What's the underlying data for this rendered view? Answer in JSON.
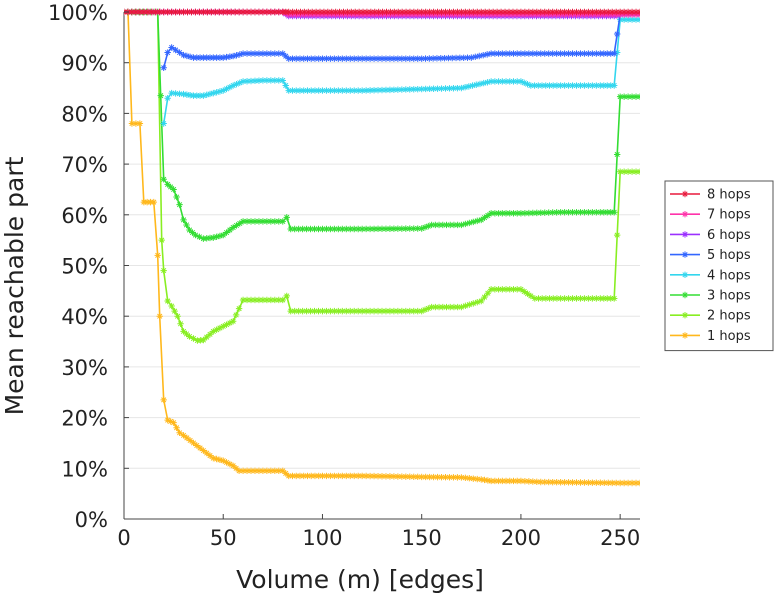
{
  "chart_data": {
    "type": "line",
    "title": "",
    "xlabel": "Volume (m) [edges]",
    "ylabel": "Mean reachable part",
    "xlim": [
      0,
      260
    ],
    "ylim": [
      0,
      100
    ],
    "x_ticks": [
      0,
      50,
      100,
      150,
      200,
      250
    ],
    "y_ticks": [
      0,
      10,
      20,
      30,
      40,
      50,
      60,
      70,
      80,
      90,
      100
    ],
    "y_tick_labels": [
      "0%",
      "10%",
      "20%",
      "30%",
      "40%",
      "50%",
      "60%",
      "70%",
      "80%",
      "90%",
      "100%"
    ],
    "grid": true,
    "legend_position": "right",
    "series": [
      {
        "name": "8 hops",
        "color": "#e8183c",
        "points": [
          [
            0,
            100
          ],
          [
            20,
            100
          ],
          [
            80,
            100
          ],
          [
            83,
            100
          ],
          [
            150,
            100
          ],
          [
            200,
            100
          ],
          [
            250,
            100
          ],
          [
            260,
            100
          ]
        ]
      },
      {
        "name": "7 hops",
        "color": "#ff33aa",
        "points": [
          [
            0,
            100
          ],
          [
            20,
            100
          ],
          [
            80,
            100
          ],
          [
            83,
            99.5
          ],
          [
            150,
            99.5
          ],
          [
            200,
            99.5
          ],
          [
            250,
            99.5
          ],
          [
            260,
            99.5
          ]
        ]
      },
      {
        "name": "6 hops",
        "color": "#9b30ff",
        "points": [
          [
            0,
            100
          ],
          [
            20,
            100
          ],
          [
            80,
            100
          ],
          [
            83,
            99.2
          ],
          [
            150,
            99.2
          ],
          [
            200,
            99.2
          ],
          [
            247,
            99.2
          ],
          [
            250,
            99.5
          ],
          [
            260,
            99.5
          ]
        ]
      },
      {
        "name": "5 hops",
        "color": "#3366ff",
        "points": [
          [
            20,
            89
          ],
          [
            22,
            92
          ],
          [
            24,
            93
          ],
          [
            26,
            92.5
          ],
          [
            28,
            92
          ],
          [
            30,
            91.5
          ],
          [
            35,
            91
          ],
          [
            40,
            91
          ],
          [
            45,
            91
          ],
          [
            50,
            91
          ],
          [
            55,
            91.3
          ],
          [
            60,
            91.8
          ],
          [
            70,
            91.8
          ],
          [
            80,
            91.8
          ],
          [
            83,
            90.8
          ],
          [
            100,
            90.8
          ],
          [
            120,
            90.8
          ],
          [
            150,
            90.8
          ],
          [
            175,
            91
          ],
          [
            185,
            91.8
          ],
          [
            200,
            91.8
          ],
          [
            220,
            91.8
          ],
          [
            240,
            91.8
          ],
          [
            247,
            91.8
          ],
          [
            250,
            99.5
          ],
          [
            260,
            99.5
          ]
        ]
      },
      {
        "name": "4 hops",
        "color": "#33d6ee",
        "points": [
          [
            20,
            78
          ],
          [
            22,
            83
          ],
          [
            24,
            84
          ],
          [
            30,
            83.8
          ],
          [
            35,
            83.5
          ],
          [
            40,
            83.5
          ],
          [
            45,
            84
          ],
          [
            50,
            84.5
          ],
          [
            55,
            85.5
          ],
          [
            60,
            86.3
          ],
          [
            70,
            86.5
          ],
          [
            80,
            86.5
          ],
          [
            83,
            84.5
          ],
          [
            100,
            84.5
          ],
          [
            120,
            84.5
          ],
          [
            150,
            84.8
          ],
          [
            170,
            85
          ],
          [
            185,
            86.3
          ],
          [
            200,
            86.3
          ],
          [
            205,
            85.5
          ],
          [
            220,
            85.5
          ],
          [
            240,
            85.5
          ],
          [
            247,
            85.5
          ],
          [
            250,
            98.5
          ],
          [
            260,
            98.5
          ]
        ]
      },
      {
        "name": "3 hops",
        "color": "#33dd33",
        "points": [
          [
            0,
            100
          ],
          [
            17,
            100
          ],
          [
            20,
            67
          ],
          [
            22,
            66
          ],
          [
            25,
            65
          ],
          [
            28,
            62
          ],
          [
            30,
            59
          ],
          [
            33,
            57
          ],
          [
            36,
            56
          ],
          [
            40,
            55.3
          ],
          [
            45,
            55.5
          ],
          [
            50,
            56
          ],
          [
            55,
            57.5
          ],
          [
            60,
            58.7
          ],
          [
            70,
            58.7
          ],
          [
            80,
            58.7
          ],
          [
            82,
            59.5
          ],
          [
            84,
            57.2
          ],
          [
            100,
            57.2
          ],
          [
            120,
            57.2
          ],
          [
            150,
            57.3
          ],
          [
            155,
            58
          ],
          [
            170,
            58
          ],
          [
            180,
            59
          ],
          [
            185,
            60.3
          ],
          [
            200,
            60.3
          ],
          [
            220,
            60.5
          ],
          [
            240,
            60.5
          ],
          [
            247,
            60.5
          ],
          [
            250,
            83.3
          ],
          [
            260,
            83.3
          ]
        ]
      },
      {
        "name": "2 hops",
        "color": "#88ee22",
        "points": [
          [
            0,
            100
          ],
          [
            17,
            100
          ],
          [
            19,
            55
          ],
          [
            20,
            49
          ],
          [
            22,
            43
          ],
          [
            24,
            42
          ],
          [
            27,
            40
          ],
          [
            30,
            37
          ],
          [
            33,
            36
          ],
          [
            37,
            35.2
          ],
          [
            40,
            35.3
          ],
          [
            45,
            37
          ],
          [
            50,
            38
          ],
          [
            55,
            39
          ],
          [
            58,
            41.5
          ],
          [
            60,
            43.2
          ],
          [
            70,
            43.2
          ],
          [
            80,
            43.2
          ],
          [
            82,
            44
          ],
          [
            84,
            41
          ],
          [
            100,
            41
          ],
          [
            120,
            41
          ],
          [
            150,
            41
          ],
          [
            155,
            41.8
          ],
          [
            170,
            41.8
          ],
          [
            180,
            43
          ],
          [
            185,
            45.3
          ],
          [
            200,
            45.3
          ],
          [
            205,
            44
          ],
          [
            207,
            43.5
          ],
          [
            220,
            43.5
          ],
          [
            240,
            43.5
          ],
          [
            247,
            43.5
          ],
          [
            250,
            68.5
          ],
          [
            260,
            68.5
          ]
        ]
      },
      {
        "name": "1 hops",
        "color": "#ffb81c",
        "points": [
          [
            0,
            100
          ],
          [
            2,
            100
          ],
          [
            4,
            78
          ],
          [
            8,
            78
          ],
          [
            10,
            62.5
          ],
          [
            15,
            62.5
          ],
          [
            17,
            52
          ],
          [
            18,
            40
          ],
          [
            20,
            23.5
          ],
          [
            22,
            19.5
          ],
          [
            25,
            19
          ],
          [
            28,
            17
          ],
          [
            30,
            16.5
          ],
          [
            35,
            15
          ],
          [
            40,
            13.5
          ],
          [
            45,
            12
          ],
          [
            50,
            11.5
          ],
          [
            55,
            10.5
          ],
          [
            58,
            9.5
          ],
          [
            70,
            9.5
          ],
          [
            80,
            9.5
          ],
          [
            83,
            8.5
          ],
          [
            100,
            8.5
          ],
          [
            120,
            8.5
          ],
          [
            150,
            8.3
          ],
          [
            170,
            8.2
          ],
          [
            180,
            7.8
          ],
          [
            185,
            7.5
          ],
          [
            200,
            7.5
          ],
          [
            210,
            7.3
          ],
          [
            230,
            7.2
          ],
          [
            250,
            7.1
          ],
          [
            260,
            7.1
          ]
        ]
      }
    ]
  }
}
